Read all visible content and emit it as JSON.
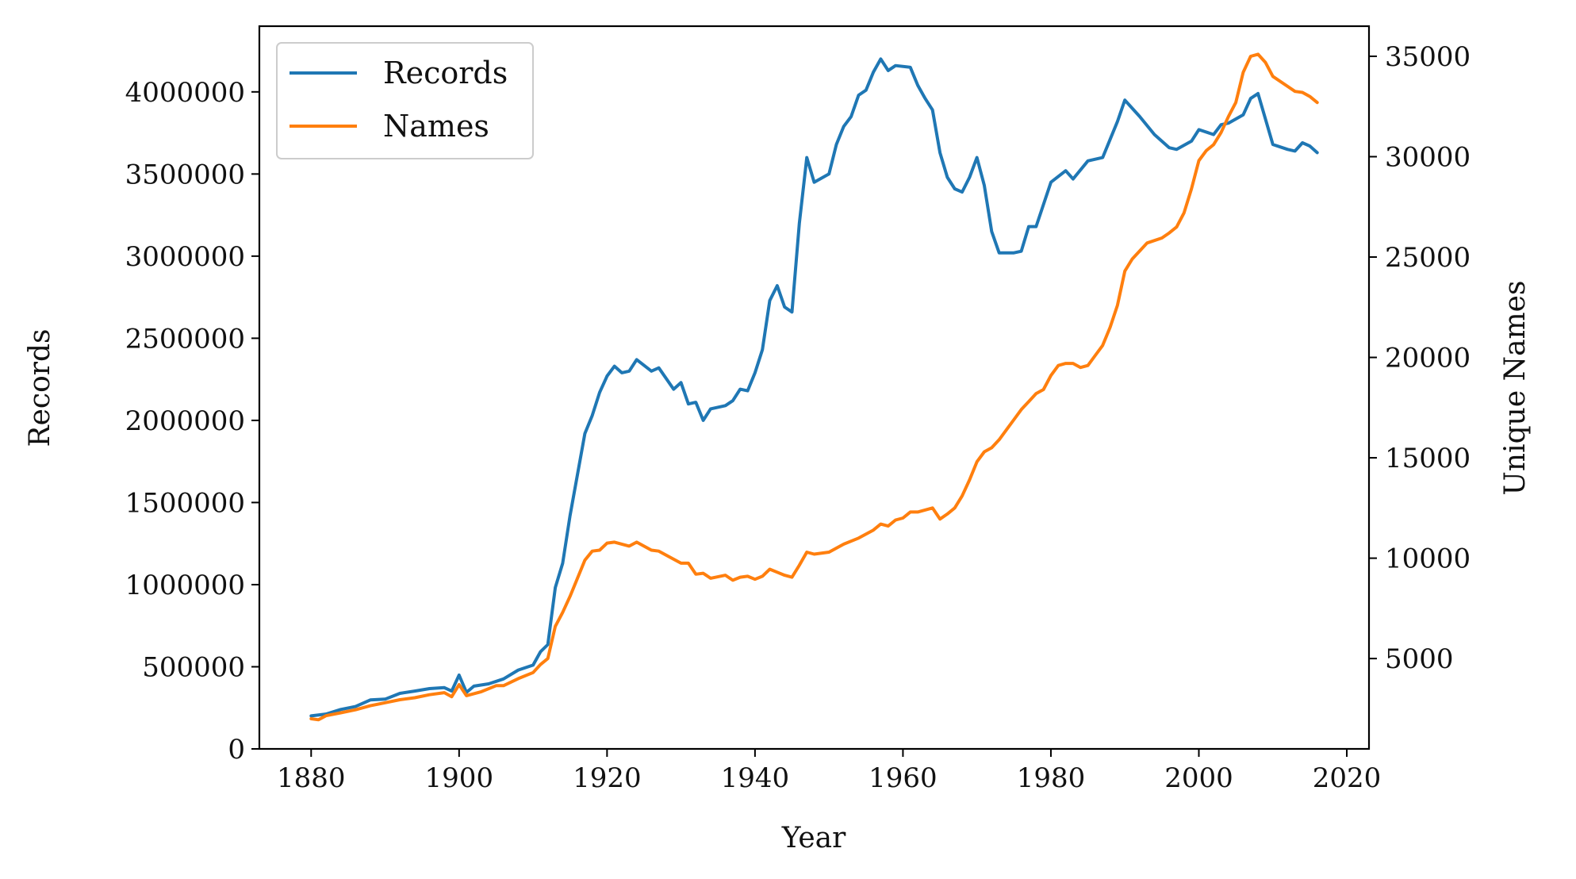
{
  "chart_data": {
    "type": "line",
    "xlabel": "Year",
    "ylabel": "Records",
    "y2label": "Unique Names",
    "xlim": [
      1873,
      2023
    ],
    "ylim": [
      0,
      4400000
    ],
    "y2lim": [
      500,
      36500
    ],
    "xticks": [
      1880,
      1900,
      1920,
      1940,
      1960,
      1980,
      2000,
      2020
    ],
    "yticks": [
      0,
      500000,
      1000000,
      1500000,
      2000000,
      2500000,
      3000000,
      3500000,
      4000000
    ],
    "y2ticks": [
      5000,
      10000,
      15000,
      20000,
      25000,
      30000,
      35000
    ],
    "grid": false,
    "legend": "top-left",
    "series": [
      {
        "name": "Records",
        "axis": "left",
        "color": "#1f77b4",
        "x": [
          1880,
          1882,
          1884,
          1886,
          1888,
          1890,
          1892,
          1894,
          1896,
          1898,
          1899,
          1900,
          1901,
          1902,
          1904,
          1906,
          1908,
          1910,
          1911,
          1912,
          1913,
          1914,
          1915,
          1917,
          1918,
          1919,
          1920,
          1921,
          1922,
          1923,
          1924,
          1926,
          1927,
          1929,
          1930,
          1931,
          1932,
          1933,
          1934,
          1936,
          1937,
          1938,
          1939,
          1940,
          1941,
          1942,
          1943,
          1944,
          1945,
          1946,
          1947,
          1948,
          1950,
          1951,
          1952,
          1953,
          1954,
          1955,
          1956,
          1957,
          1958,
          1959,
          1961,
          1962,
          1963,
          1964,
          1965,
          1966,
          1967,
          1968,
          1969,
          1970,
          1971,
          1972,
          1973,
          1975,
          1976,
          1977,
          1978,
          1980,
          1982,
          1983,
          1985,
          1987,
          1989,
          1990,
          1991,
          1992,
          1994,
          1996,
          1997,
          1999,
          2000,
          2002,
          2003,
          2004,
          2006,
          2007,
          2008,
          2010,
          2012,
          2013,
          2014,
          2015,
          2016
        ],
        "values": [
          201000,
          212000,
          240000,
          258000,
          298000,
          303000,
          338000,
          352000,
          367000,
          373000,
          352000,
          449000,
          344000,
          382000,
          396000,
          426000,
          480000,
          510000,
          591000,
          635000,
          982000,
          1130000,
          1420000,
          1920000,
          2030000,
          2170000,
          2270000,
          2330000,
          2290000,
          2300000,
          2370000,
          2300000,
          2320000,
          2190000,
          2230000,
          2100000,
          2110000,
          2000000,
          2070000,
          2090000,
          2120000,
          2190000,
          2180000,
          2290000,
          2430000,
          2730000,
          2820000,
          2690000,
          2660000,
          3200000,
          3600000,
          3450000,
          3500000,
          3680000,
          3790000,
          3850000,
          3980000,
          4010000,
          4120000,
          4200000,
          4130000,
          4160000,
          4150000,
          4040000,
          3960000,
          3890000,
          3630000,
          3480000,
          3410000,
          3390000,
          3480000,
          3600000,
          3430000,
          3150000,
          3020000,
          3020000,
          3030000,
          3180000,
          3180000,
          3450000,
          3520000,
          3470000,
          3580000,
          3600000,
          3820000,
          3950000,
          3900000,
          3850000,
          3740000,
          3660000,
          3650000,
          3700000,
          3770000,
          3740000,
          3800000,
          3810000,
          3860000,
          3960000,
          3990000,
          3680000,
          3650000,
          3640000,
          3690000,
          3670000,
          3630000
        ]
      },
      {
        "name": "Names",
        "axis": "right",
        "color": "#ff7f0e",
        "x": [
          1880,
          1881,
          1882,
          1884,
          1886,
          1888,
          1890,
          1892,
          1894,
          1896,
          1898,
          1899,
          1900,
          1901,
          1903,
          1905,
          1906,
          1908,
          1910,
          1911,
          1912,
          1913,
          1914,
          1915,
          1917,
          1918,
          1919,
          1920,
          1921,
          1922,
          1923,
          1924,
          1926,
          1927,
          1929,
          1930,
          1931,
          1932,
          1933,
          1934,
          1936,
          1937,
          1938,
          1939,
          1940,
          1941,
          1942,
          1943,
          1944,
          1945,
          1946,
          1947,
          1948,
          1950,
          1952,
          1954,
          1955,
          1956,
          1957,
          1958,
          1959,
          1960,
          1961,
          1962,
          1964,
          1965,
          1966,
          1967,
          1968,
          1969,
          1970,
          1971,
          1972,
          1973,
          1975,
          1976,
          1977,
          1978,
          1979,
          1980,
          1981,
          1982,
          1983,
          1984,
          1985,
          1986,
          1987,
          1988,
          1989,
          1990,
          1991,
          1992,
          1993,
          1995,
          1996,
          1997,
          1998,
          1999,
          2000,
          2001,
          2002,
          2003,
          2004,
          2005,
          2006,
          2007,
          2008,
          2009,
          2010,
          2012,
          2013,
          2014,
          2015,
          2016
        ],
        "values": [
          2000,
          1950,
          2150,
          2300,
          2450,
          2650,
          2800,
          2950,
          3050,
          3200,
          3300,
          3100,
          3700,
          3150,
          3350,
          3650,
          3650,
          4000,
          4300,
          4700,
          5000,
          6600,
          7300,
          8100,
          9900,
          10350,
          10400,
          10750,
          10800,
          10700,
          10600,
          10800,
          10400,
          10350,
          9950,
          9750,
          9750,
          9200,
          9250,
          9000,
          9150,
          8900,
          9050,
          9100,
          8950,
          9100,
          9450,
          9300,
          9150,
          9050,
          9650,
          10300,
          10200,
          10300,
          10700,
          11000,
          11200,
          11400,
          11700,
          11600,
          11900,
          12000,
          12300,
          12300,
          12500,
          11950,
          12200,
          12500,
          13100,
          13900,
          14800,
          15300,
          15500,
          15900,
          16900,
          17400,
          17800,
          18200,
          18400,
          19100,
          19600,
          19700,
          19700,
          19500,
          19600,
          20100,
          20600,
          21500,
          22600,
          24300,
          24900,
          25300,
          25700,
          25950,
          26200,
          26500,
          27200,
          28400,
          29800,
          30300,
          30600,
          31200,
          32000,
          32700,
          34200,
          35000,
          35100,
          34700,
          34000,
          33500,
          33250,
          33200,
          33000,
          32700
        ]
      }
    ]
  }
}
